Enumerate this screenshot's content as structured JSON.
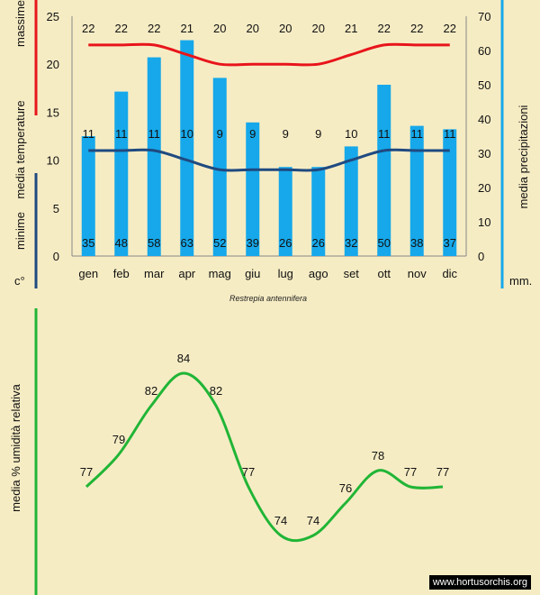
{
  "chart_data": [
    {
      "type": "bar",
      "categories": [
        "gen",
        "feb",
        "mar",
        "apr",
        "mag",
        "giu",
        "lug",
        "ago",
        "set",
        "ott",
        "nov",
        "dic"
      ],
      "series": [
        {
          "name": "media precipitazioni",
          "axis": "right",
          "values": [
            35,
            48,
            58,
            63,
            52,
            39,
            26,
            26,
            32,
            50,
            38,
            37
          ]
        },
        {
          "name": "massime",
          "kind": "line",
          "axis": "left",
          "values": [
            22,
            22,
            22,
            21,
            20,
            20,
            20,
            20,
            21,
            22,
            22,
            22
          ]
        },
        {
          "name": "minime",
          "kind": "line",
          "axis": "left",
          "values": [
            11,
            11,
            11,
            10,
            9,
            9,
            9,
            9,
            10,
            11,
            11,
            11
          ]
        }
      ],
      "ylabel_left": {
        "part1": "media",
        "part2": "temperature",
        "max_word": "massime",
        "min_word": "minime"
      },
      "ylabel_right": "media  precipitazioni",
      "unit_left": "c°",
      "unit_right": "mm.",
      "ylim_left": [
        0,
        25
      ],
      "yticks_left": [
        0,
        5,
        10,
        15,
        20,
        25
      ],
      "ylim_right": [
        0,
        70
      ],
      "yticks_right": [
        0,
        10,
        20,
        30,
        40,
        50,
        60,
        70
      ],
      "caption": "Restrepia  antennifera",
      "colors": {
        "bars": "#16a8ea",
        "max": "#e8151b",
        "min": "#1f4a80",
        "axis_left": "#e8151b",
        "axis_left_low": "#1f4a80",
        "axis_right": "#16a8ea"
      }
    },
    {
      "type": "line",
      "categories": [
        "gen",
        "feb",
        "mar",
        "apr",
        "mag",
        "giu",
        "lug",
        "ago",
        "set",
        "ott",
        "nov",
        "dic"
      ],
      "values": [
        77,
        79,
        82,
        84,
        82,
        77,
        74,
        74,
        76,
        78,
        77,
        77
      ],
      "ylabel": "media %  umidità relativa",
      "color": "#21b536"
    }
  ],
  "credit": "www.hortusorchis.org"
}
